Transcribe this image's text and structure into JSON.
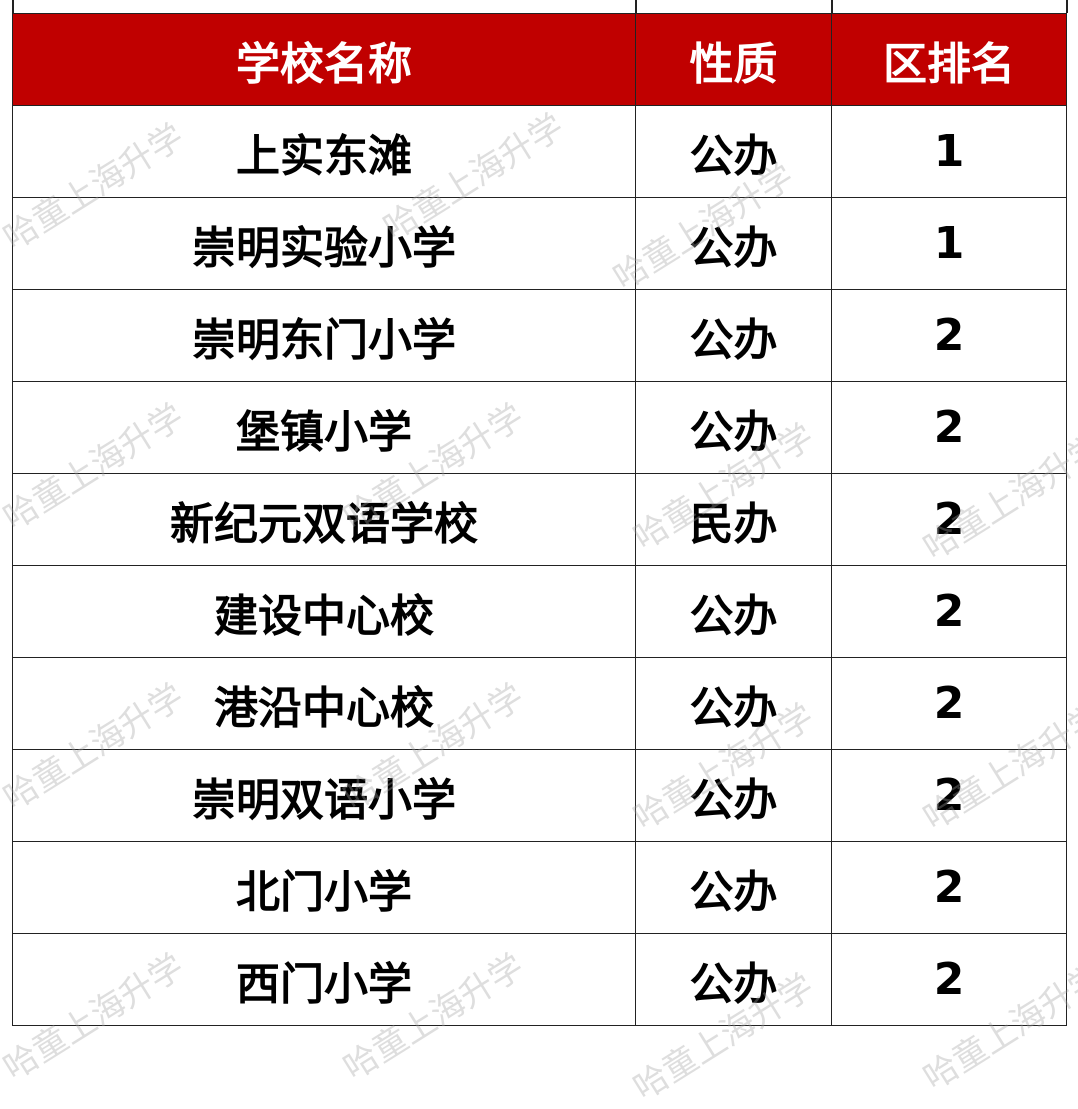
{
  "table": {
    "headers": [
      "学校名称",
      "性质",
      "区排名"
    ],
    "header_color": "#c00000",
    "rows": [
      [
        "上实东滩",
        "公办",
        "1"
      ],
      [
        "崇明实验小学",
        "公办",
        "1"
      ],
      [
        "崇明东门小学",
        "公办",
        "2"
      ],
      [
        "堡镇小学",
        "公办",
        "2"
      ],
      [
        "新纪元双语学校",
        "民办",
        "2"
      ],
      [
        "建设中心校",
        "公办",
        "2"
      ],
      [
        "港沿中心校",
        "公办",
        "2"
      ],
      [
        "崇明双语小学",
        "公办",
        "2"
      ],
      [
        "北门小学",
        "公办",
        "2"
      ],
      [
        "西门小学",
        "公办",
        "2"
      ]
    ]
  },
  "watermark": "哈童上海升学"
}
